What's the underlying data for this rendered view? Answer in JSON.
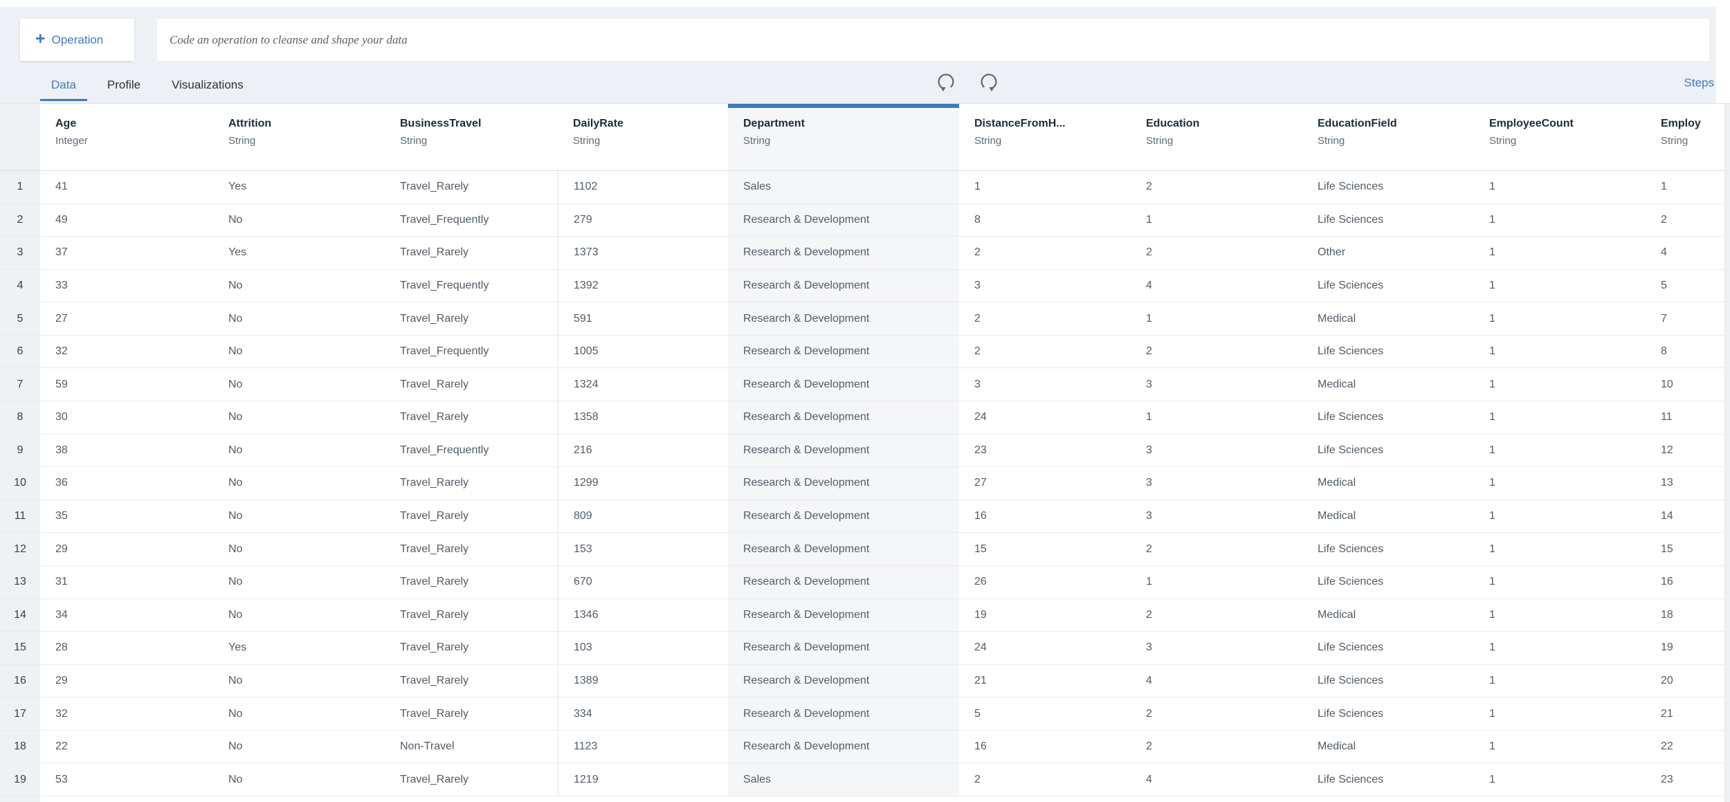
{
  "colors": {
    "accent": "#4178be",
    "selected_column_bar": "#4377be",
    "toolbar_background": "#edf0f4",
    "selected_column_tint": "#f5f6f8",
    "gutter_background": "#eff2f5"
  },
  "toolbar": {
    "operation_button": {
      "plus_icon": "+",
      "label": "Operation"
    },
    "code_input_placeholder": "Code an operation to cleanse and shape your data",
    "tabs": [
      {
        "label": "Data",
        "active": true
      },
      {
        "label": "Profile",
        "active": false
      },
      {
        "label": "Visualizations",
        "active": false
      }
    ],
    "undo_icon": "undo-circular-arrow",
    "redo_icon": "redo-circular-arrow",
    "steps_label": "Steps"
  },
  "table": {
    "columns": [
      {
        "name": "Age",
        "type": "Integer",
        "selected": false
      },
      {
        "name": "Attrition",
        "type": "String",
        "selected": false
      },
      {
        "name": "BusinessTravel",
        "type": "String",
        "selected": false
      },
      {
        "name": "DailyRate",
        "type": "String",
        "selected": false
      },
      {
        "name": "Department",
        "type": "String",
        "selected": true
      },
      {
        "name": "DistanceFromH...",
        "type": "String",
        "selected": false
      },
      {
        "name": "Education",
        "type": "String",
        "selected": false
      },
      {
        "name": "EducationField",
        "type": "String",
        "selected": false
      },
      {
        "name": "EmployeeCount",
        "type": "String",
        "selected": false
      },
      {
        "name": "Employ",
        "type": "String",
        "selected": false
      }
    ],
    "rows": [
      {
        "num": "1",
        "cells": [
          "41",
          "Yes",
          "Travel_Rarely",
          "1102",
          "Sales",
          "1",
          "2",
          "Life Sciences",
          "1",
          "1"
        ]
      },
      {
        "num": "2",
        "cells": [
          "49",
          "No",
          "Travel_Frequently",
          "279",
          "Research & Development",
          "8",
          "1",
          "Life Sciences",
          "1",
          "2"
        ]
      },
      {
        "num": "3",
        "cells": [
          "37",
          "Yes",
          "Travel_Rarely",
          "1373",
          "Research & Development",
          "2",
          "2",
          "Other",
          "1",
          "4"
        ]
      },
      {
        "num": "4",
        "cells": [
          "33",
          "No",
          "Travel_Frequently",
          "1392",
          "Research & Development",
          "3",
          "4",
          "Life Sciences",
          "1",
          "5"
        ]
      },
      {
        "num": "5",
        "cells": [
          "27",
          "No",
          "Travel_Rarely",
          "591",
          "Research & Development",
          "2",
          "1",
          "Medical",
          "1",
          "7"
        ]
      },
      {
        "num": "6",
        "cells": [
          "32",
          "No",
          "Travel_Frequently",
          "1005",
          "Research & Development",
          "2",
          "2",
          "Life Sciences",
          "1",
          "8"
        ]
      },
      {
        "num": "7",
        "cells": [
          "59",
          "No",
          "Travel_Rarely",
          "1324",
          "Research & Development",
          "3",
          "3",
          "Medical",
          "1",
          "10"
        ]
      },
      {
        "num": "8",
        "cells": [
          "30",
          "No",
          "Travel_Rarely",
          "1358",
          "Research & Development",
          "24",
          "1",
          "Life Sciences",
          "1",
          "11"
        ]
      },
      {
        "num": "9",
        "cells": [
          "38",
          "No",
          "Travel_Frequently",
          "216",
          "Research & Development",
          "23",
          "3",
          "Life Sciences",
          "1",
          "12"
        ]
      },
      {
        "num": "10",
        "cells": [
          "36",
          "No",
          "Travel_Rarely",
          "1299",
          "Research & Development",
          "27",
          "3",
          "Medical",
          "1",
          "13"
        ]
      },
      {
        "num": "11",
        "cells": [
          "35",
          "No",
          "Travel_Rarely",
          "809",
          "Research & Development",
          "16",
          "3",
          "Medical",
          "1",
          "14"
        ]
      },
      {
        "num": "12",
        "cells": [
          "29",
          "No",
          "Travel_Rarely",
          "153",
          "Research & Development",
          "15",
          "2",
          "Life Sciences",
          "1",
          "15"
        ]
      },
      {
        "num": "13",
        "cells": [
          "31",
          "No",
          "Travel_Rarely",
          "670",
          "Research & Development",
          "26",
          "1",
          "Life Sciences",
          "1",
          "16"
        ]
      },
      {
        "num": "14",
        "cells": [
          "34",
          "No",
          "Travel_Rarely",
          "1346",
          "Research & Development",
          "19",
          "2",
          "Medical",
          "1",
          "18"
        ]
      },
      {
        "num": "15",
        "cells": [
          "28",
          "Yes",
          "Travel_Rarely",
          "103",
          "Research & Development",
          "24",
          "3",
          "Life Sciences",
          "1",
          "19"
        ]
      },
      {
        "num": "16",
        "cells": [
          "29",
          "No",
          "Travel_Rarely",
          "1389",
          "Research & Development",
          "21",
          "4",
          "Life Sciences",
          "1",
          "20"
        ]
      },
      {
        "num": "17",
        "cells": [
          "32",
          "No",
          "Travel_Rarely",
          "334",
          "Research & Development",
          "5",
          "2",
          "Life Sciences",
          "1",
          "21"
        ]
      },
      {
        "num": "18",
        "cells": [
          "22",
          "No",
          "Non-Travel",
          "1123",
          "Research & Development",
          "16",
          "2",
          "Medical",
          "1",
          "22"
        ]
      },
      {
        "num": "19",
        "cells": [
          "53",
          "No",
          "Travel_Rarely",
          "1219",
          "Sales",
          "2",
          "4",
          "Life Sciences",
          "1",
          "23"
        ]
      }
    ]
  }
}
